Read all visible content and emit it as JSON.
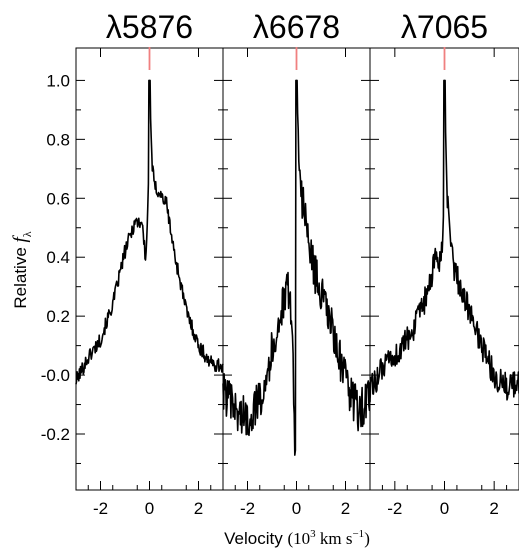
{
  "chart_data": {
    "type": "line",
    "y_axis": {
      "label_text": "Relative ",
      "label_symbol": "f",
      "label_subscript": "λ",
      "ylim": [
        -0.39,
        1.11
      ],
      "ticks": [
        1.0,
        0.8,
        0.6,
        0.4,
        0.2,
        0.0,
        -0.2
      ],
      "tick_labels": [
        "1.0",
        "0.8",
        "0.6",
        "0.4",
        "0.2",
        "-0.0",
        "-0.2"
      ]
    },
    "x_axis": {
      "label_text": "Velocity ",
      "label_unit_open": "(10",
      "label_unit_exp": "3",
      "label_unit_mid": " km s",
      "label_unit_exp2": "−1",
      "label_unit_close": ")",
      "xlim": [
        -3.0,
        3.0
      ],
      "ticks": [
        -2,
        0,
        2
      ],
      "tick_labels": [
        "-2",
        "0",
        "2"
      ]
    },
    "marker_color": "#f08080",
    "line_color": "#000000",
    "panels": [
      {
        "title": "λ5876",
        "x": [
          -3.0,
          -2.5,
          -2.0,
          -1.5,
          -1.0,
          -0.6,
          -0.3,
          -0.15,
          -0.05,
          0.0,
          0.1,
          0.2,
          0.4,
          0.7,
          1.0,
          1.5,
          2.0,
          2.5,
          3.0
        ],
        "y": [
          -0.02,
          0.06,
          0.12,
          0.24,
          0.42,
          0.52,
          0.52,
          0.38,
          0.62,
          1.0,
          0.72,
          0.64,
          0.62,
          0.58,
          0.42,
          0.22,
          0.1,
          0.04,
          0.03
        ]
      },
      {
        "title": "λ6678",
        "x": [
          -3.0,
          -2.5,
          -2.0,
          -1.5,
          -1.0,
          -0.6,
          -0.3,
          -0.15,
          -0.05,
          0.0,
          0.1,
          0.2,
          0.4,
          0.7,
          1.0,
          1.5,
          2.0,
          2.5,
          3.0
        ],
        "y": [
          -0.05,
          -0.12,
          -0.15,
          -0.08,
          0.08,
          0.22,
          0.3,
          0.1,
          -0.36,
          1.0,
          0.76,
          0.62,
          0.5,
          0.36,
          0.28,
          0.14,
          -0.02,
          -0.12,
          -0.08
        ]
      },
      {
        "title": "λ7065",
        "x": [
          -3.0,
          -2.5,
          -2.0,
          -1.5,
          -1.0,
          -0.6,
          -0.3,
          -0.15,
          -0.05,
          0.0,
          0.1,
          0.2,
          0.4,
          0.7,
          1.0,
          1.5,
          2.0,
          2.5,
          3.0
        ],
        "y": [
          -0.05,
          0.02,
          0.06,
          0.12,
          0.2,
          0.3,
          0.42,
          0.36,
          0.5,
          1.0,
          0.62,
          0.48,
          0.36,
          0.28,
          0.22,
          0.1,
          0.0,
          -0.04,
          -0.03
        ]
      }
    ]
  }
}
